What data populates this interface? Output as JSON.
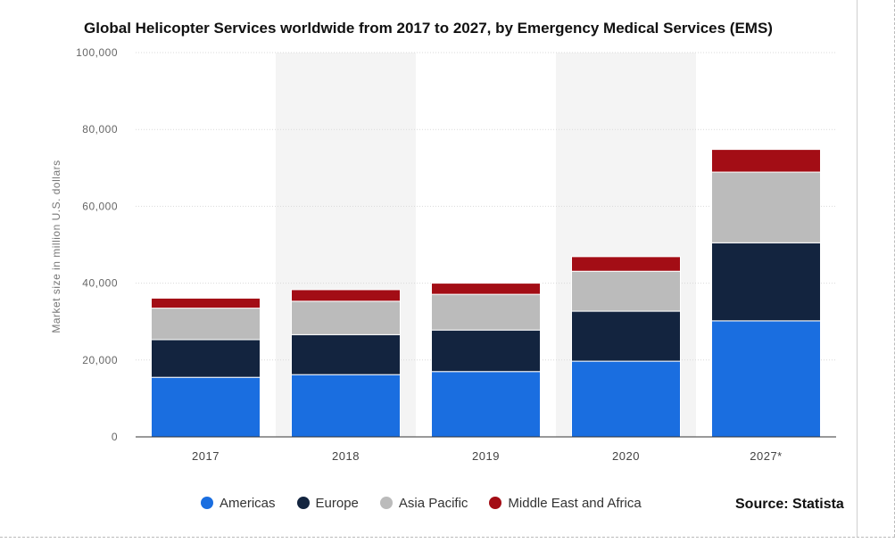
{
  "chart_data": {
    "type": "bar",
    "stacked": true,
    "title": "Global Helicopter Services worldwide from 2017 to 2027, by Emergency Medical Services (EMS)",
    "ylabel": "Market size in million U.S. dollars",
    "xlabel": "",
    "ylim": [
      0,
      100000
    ],
    "y_ticks": [
      0,
      20000,
      40000,
      60000,
      80000,
      100000
    ],
    "y_tick_labels": [
      "0",
      "20,000",
      "40,000",
      "60,000",
      "80,000",
      "100,000"
    ],
    "categories": [
      "2017",
      "2018",
      "2019",
      "2020",
      "2027*"
    ],
    "series": [
      {
        "name": "Americas",
        "color": "#1a6ee0",
        "values": [
          15500,
          16200,
          17000,
          19700,
          30200
        ]
      },
      {
        "name": "Europe",
        "color": "#13243f",
        "values": [
          9800,
          10400,
          10800,
          13000,
          20300
        ]
      },
      {
        "name": "Asia Pacific",
        "color": "#bbbbbb",
        "values": [
          8200,
          8700,
          9300,
          10400,
          18400
        ]
      },
      {
        "name": "Middle East and Africa",
        "color": "#a30d15",
        "values": [
          2600,
          3000,
          2900,
          3800,
          5900
        ]
      }
    ],
    "grid": true,
    "legend_position": "bottom"
  },
  "source": "Source: Statista"
}
